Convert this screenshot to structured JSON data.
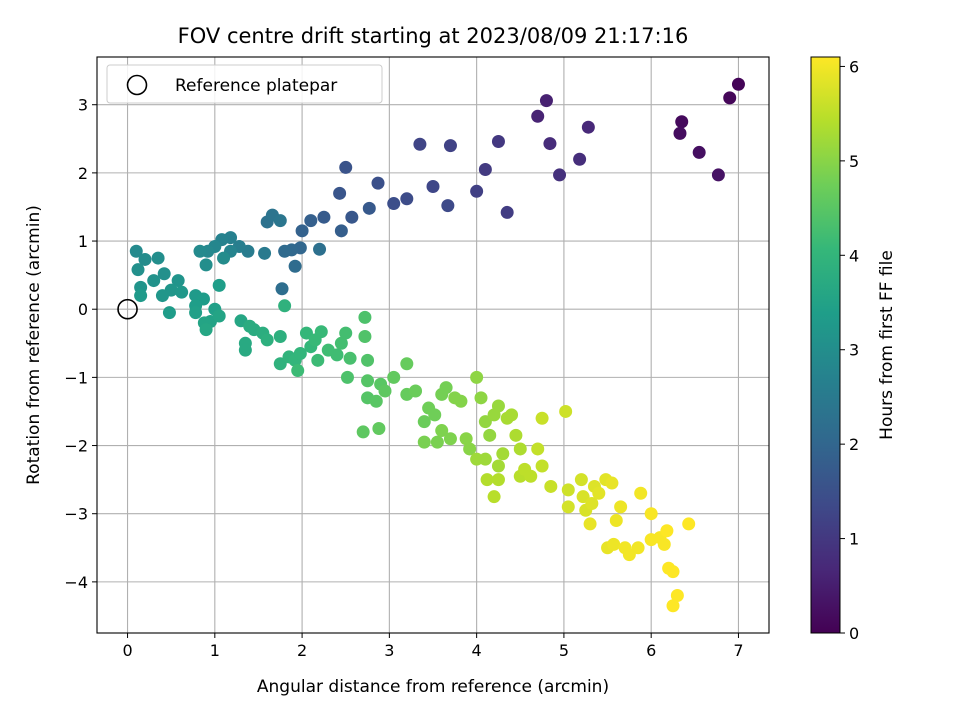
{
  "chart_data": {
    "type": "scatter",
    "title": "FOV centre drift starting at 2023/08/09 21:17:16",
    "xlabel": "Angular distance from reference (arcmin)",
    "ylabel": "Rotation from reference (arcmin)",
    "xlim": [
      -0.35,
      7.35
    ],
    "ylim": [
      -4.75,
      3.7
    ],
    "xticks": [
      0,
      1,
      2,
      3,
      4,
      5,
      6,
      7
    ],
    "yticks": [
      -4,
      -3,
      -2,
      -1,
      0,
      1,
      2,
      3
    ],
    "grid": true,
    "legend": {
      "placement": "top-left",
      "entries": [
        "Reference platepar"
      ]
    },
    "reference_point": {
      "x": 0,
      "y": 0
    },
    "colorbar": {
      "label": "Hours from first FF file",
      "range": [
        0,
        6.1
      ],
      "ticks": [
        0,
        1,
        2,
        3,
        4,
        5,
        6
      ],
      "colormap": "viridis",
      "stops": [
        "#440154",
        "#482878",
        "#3e4a89",
        "#31688e",
        "#26828e",
        "#1f9e89",
        "#35b779",
        "#6ece58",
        "#b5de2b",
        "#fde725"
      ]
    },
    "points": [
      {
        "x": 7.0,
        "y": 3.3,
        "h": 0.05
      },
      {
        "x": 6.9,
        "y": 3.1,
        "h": 0.1
      },
      {
        "x": 6.35,
        "y": 2.75,
        "h": 0.15
      },
      {
        "x": 6.33,
        "y": 2.58,
        "h": 0.2
      },
      {
        "x": 6.55,
        "y": 2.3,
        "h": 0.25
      },
      {
        "x": 6.77,
        "y": 1.97,
        "h": 0.3
      },
      {
        "x": 4.8,
        "y": 3.06,
        "h": 0.55
      },
      {
        "x": 4.7,
        "y": 2.83,
        "h": 0.6
      },
      {
        "x": 5.28,
        "y": 2.67,
        "h": 0.7
      },
      {
        "x": 4.84,
        "y": 2.43,
        "h": 0.75
      },
      {
        "x": 5.18,
        "y": 2.2,
        "h": 0.8
      },
      {
        "x": 4.95,
        "y": 1.97,
        "h": 0.85
      },
      {
        "x": 4.25,
        "y": 2.46,
        "h": 1.0
      },
      {
        "x": 4.1,
        "y": 2.05,
        "h": 1.05
      },
      {
        "x": 4.35,
        "y": 1.42,
        "h": 1.1
      },
      {
        "x": 4.0,
        "y": 1.73,
        "h": 1.15
      },
      {
        "x": 3.7,
        "y": 2.4,
        "h": 1.2
      },
      {
        "x": 3.35,
        "y": 2.42,
        "h": 1.25
      },
      {
        "x": 3.5,
        "y": 1.8,
        "h": 1.3
      },
      {
        "x": 3.67,
        "y": 1.52,
        "h": 1.35
      },
      {
        "x": 3.2,
        "y": 1.62,
        "h": 1.4
      },
      {
        "x": 3.05,
        "y": 1.55,
        "h": 1.45
      },
      {
        "x": 2.87,
        "y": 1.85,
        "h": 1.5
      },
      {
        "x": 2.5,
        "y": 2.08,
        "h": 1.55
      },
      {
        "x": 2.43,
        "y": 1.7,
        "h": 1.6
      },
      {
        "x": 2.57,
        "y": 1.35,
        "h": 1.65
      },
      {
        "x": 2.77,
        "y": 1.48,
        "h": 1.7
      },
      {
        "x": 2.25,
        "y": 1.35,
        "h": 1.75
      },
      {
        "x": 2.45,
        "y": 1.15,
        "h": 1.8
      },
      {
        "x": 2.1,
        "y": 1.3,
        "h": 1.85
      },
      {
        "x": 2.0,
        "y": 1.15,
        "h": 1.9
      },
      {
        "x": 1.98,
        "y": 0.9,
        "h": 2.0
      },
      {
        "x": 1.88,
        "y": 0.87,
        "h": 2.05
      },
      {
        "x": 1.8,
        "y": 0.85,
        "h": 2.1
      },
      {
        "x": 1.92,
        "y": 0.63,
        "h": 2.15
      },
      {
        "x": 1.77,
        "y": 0.3,
        "h": 2.2
      },
      {
        "x": 2.2,
        "y": 0.88,
        "h": 2.25
      },
      {
        "x": 1.6,
        "y": 1.28,
        "h": 2.3
      },
      {
        "x": 1.66,
        "y": 1.38,
        "h": 2.35
      },
      {
        "x": 1.75,
        "y": 1.3,
        "h": 2.4
      },
      {
        "x": 1.57,
        "y": 0.82,
        "h": 2.5
      },
      {
        "x": 1.38,
        "y": 0.85,
        "h": 2.55
      },
      {
        "x": 1.28,
        "y": 0.92,
        "h": 2.6
      },
      {
        "x": 1.18,
        "y": 1.05,
        "h": 2.65
      },
      {
        "x": 1.08,
        "y": 1.02,
        "h": 2.7
      },
      {
        "x": 1.18,
        "y": 0.85,
        "h": 2.75
      },
      {
        "x": 1.0,
        "y": 0.92,
        "h": 2.8
      },
      {
        "x": 0.92,
        "y": 0.85,
        "h": 2.85
      },
      {
        "x": 0.83,
        "y": 0.85,
        "h": 2.9
      },
      {
        "x": 1.1,
        "y": 0.75,
        "h": 2.95
      },
      {
        "x": 0.9,
        "y": 0.65,
        "h": 3.0
      },
      {
        "x": 0.1,
        "y": 0.85,
        "h": 2.9
      },
      {
        "x": 0.2,
        "y": 0.73,
        "h": 2.95
      },
      {
        "x": 0.35,
        "y": 0.75,
        "h": 3.0
      },
      {
        "x": 0.12,
        "y": 0.58,
        "h": 3.05
      },
      {
        "x": 0.42,
        "y": 0.52,
        "h": 3.05
      },
      {
        "x": 0.3,
        "y": 0.42,
        "h": 3.1
      },
      {
        "x": 0.58,
        "y": 0.42,
        "h": 3.15
      },
      {
        "x": 0.15,
        "y": 0.32,
        "h": 3.15
      },
      {
        "x": 0.5,
        "y": 0.28,
        "h": 3.2
      },
      {
        "x": 0.62,
        "y": 0.25,
        "h": 3.25
      },
      {
        "x": 0.4,
        "y": 0.2,
        "h": 3.2
      },
      {
        "x": 0.15,
        "y": 0.2,
        "h": 3.3
      },
      {
        "x": 0.78,
        "y": 0.2,
        "h": 3.3
      },
      {
        "x": 0.48,
        "y": -0.05,
        "h": 3.35
      },
      {
        "x": 0.87,
        "y": 0.15,
        "h": 3.35
      },
      {
        "x": 1.05,
        "y": 0.35,
        "h": 3.4
      },
      {
        "x": 0.78,
        "y": 0.05,
        "h": 3.4
      },
      {
        "x": 0.78,
        "y": -0.05,
        "h": 3.45
      },
      {
        "x": 1.0,
        "y": 0.0,
        "h": 3.45
      },
      {
        "x": 0.95,
        "y": -0.18,
        "h": 3.5
      },
      {
        "x": 0.88,
        "y": -0.2,
        "h": 3.55
      },
      {
        "x": 1.05,
        "y": -0.1,
        "h": 3.55
      },
      {
        "x": 0.9,
        "y": -0.3,
        "h": 3.6
      },
      {
        "x": 1.3,
        "y": -0.17,
        "h": 3.6
      },
      {
        "x": 1.35,
        "y": -0.5,
        "h": 3.7
      },
      {
        "x": 1.35,
        "y": -0.6,
        "h": 3.7
      },
      {
        "x": 1.45,
        "y": -0.3,
        "h": 3.75
      },
      {
        "x": 1.4,
        "y": -0.25,
        "h": 3.75
      },
      {
        "x": 1.55,
        "y": -0.35,
        "h": 3.8
      },
      {
        "x": 1.6,
        "y": -0.45,
        "h": 3.85
      },
      {
        "x": 1.75,
        "y": -0.4,
        "h": 3.85
      },
      {
        "x": 1.8,
        "y": 0.05,
        "h": 3.9
      },
      {
        "x": 1.75,
        "y": -0.8,
        "h": 3.9
      },
      {
        "x": 1.85,
        "y": -0.7,
        "h": 3.95
      },
      {
        "x": 1.92,
        "y": -0.75,
        "h": 4.0
      },
      {
        "x": 1.98,
        "y": -0.65,
        "h": 4.0
      },
      {
        "x": 2.05,
        "y": -0.35,
        "h": 4.05
      },
      {
        "x": 2.1,
        "y": -0.55,
        "h": 4.05
      },
      {
        "x": 2.15,
        "y": -0.45,
        "h": 4.1
      },
      {
        "x": 2.22,
        "y": -0.33,
        "h": 4.1
      },
      {
        "x": 1.95,
        "y": -0.9,
        "h": 4.15
      },
      {
        "x": 2.18,
        "y": -0.75,
        "h": 4.15
      },
      {
        "x": 2.3,
        "y": -0.6,
        "h": 4.2
      },
      {
        "x": 2.4,
        "y": -0.67,
        "h": 4.2
      },
      {
        "x": 2.45,
        "y": -0.5,
        "h": 4.25
      },
      {
        "x": 2.5,
        "y": -0.35,
        "h": 4.25
      },
      {
        "x": 2.55,
        "y": -0.72,
        "h": 4.3
      },
      {
        "x": 2.52,
        "y": -1.0,
        "h": 4.35
      },
      {
        "x": 2.72,
        "y": -0.12,
        "h": 4.35
      },
      {
        "x": 2.72,
        "y": -0.4,
        "h": 4.4
      },
      {
        "x": 2.75,
        "y": -0.75,
        "h": 4.4
      },
      {
        "x": 2.75,
        "y": -1.05,
        "h": 4.45
      },
      {
        "x": 2.75,
        "y": -1.3,
        "h": 4.45
      },
      {
        "x": 2.85,
        "y": -1.35,
        "h": 4.5
      },
      {
        "x": 2.9,
        "y": -1.1,
        "h": 4.5
      },
      {
        "x": 2.95,
        "y": -1.2,
        "h": 4.55
      },
      {
        "x": 2.7,
        "y": -1.8,
        "h": 4.55
      },
      {
        "x": 2.88,
        "y": -1.75,
        "h": 4.6
      },
      {
        "x": 3.05,
        "y": -1.0,
        "h": 4.6
      },
      {
        "x": 3.2,
        "y": -0.8,
        "h": 4.65
      },
      {
        "x": 3.2,
        "y": -1.25,
        "h": 4.65
      },
      {
        "x": 3.3,
        "y": -1.2,
        "h": 4.7
      },
      {
        "x": 3.4,
        "y": -1.65,
        "h": 4.7
      },
      {
        "x": 3.45,
        "y": -1.45,
        "h": 4.75
      },
      {
        "x": 3.52,
        "y": -1.55,
        "h": 4.75
      },
      {
        "x": 3.6,
        "y": -1.25,
        "h": 4.8
      },
      {
        "x": 3.65,
        "y": -1.15,
        "h": 4.8
      },
      {
        "x": 3.4,
        "y": -1.95,
        "h": 4.85
      },
      {
        "x": 3.55,
        "y": -1.95,
        "h": 4.85
      },
      {
        "x": 3.6,
        "y": -1.78,
        "h": 4.9
      },
      {
        "x": 3.7,
        "y": -1.9,
        "h": 4.9
      },
      {
        "x": 3.75,
        "y": -1.3,
        "h": 4.95
      },
      {
        "x": 3.82,
        "y": -1.35,
        "h": 4.95
      },
      {
        "x": 3.88,
        "y": -1.9,
        "h": 5.0
      },
      {
        "x": 3.92,
        "y": -2.05,
        "h": 5.0
      },
      {
        "x": 4.0,
        "y": -1.0,
        "h": 5.05
      },
      {
        "x": 4.05,
        "y": -1.3,
        "h": 5.05
      },
      {
        "x": 4.1,
        "y": -1.65,
        "h": 5.1
      },
      {
        "x": 4.15,
        "y": -1.85,
        "h": 5.1
      },
      {
        "x": 4.2,
        "y": -1.55,
        "h": 5.15
      },
      {
        "x": 4.25,
        "y": -1.42,
        "h": 5.15
      },
      {
        "x": 4.0,
        "y": -2.2,
        "h": 5.2
      },
      {
        "x": 4.1,
        "y": -2.2,
        "h": 5.2
      },
      {
        "x": 4.25,
        "y": -2.3,
        "h": 5.25
      },
      {
        "x": 4.3,
        "y": -2.12,
        "h": 5.25
      },
      {
        "x": 4.35,
        "y": -1.6,
        "h": 5.3
      },
      {
        "x": 4.4,
        "y": -1.55,
        "h": 5.3
      },
      {
        "x": 4.45,
        "y": -1.85,
        "h": 5.35
      },
      {
        "x": 4.5,
        "y": -2.05,
        "h": 5.35
      },
      {
        "x": 4.12,
        "y": -2.5,
        "h": 5.4
      },
      {
        "x": 4.25,
        "y": -2.5,
        "h": 5.4
      },
      {
        "x": 4.2,
        "y": -2.75,
        "h": 5.45
      },
      {
        "x": 4.5,
        "y": -2.45,
        "h": 5.45
      },
      {
        "x": 4.55,
        "y": -2.35,
        "h": 5.5
      },
      {
        "x": 4.62,
        "y": -2.45,
        "h": 5.5
      },
      {
        "x": 4.7,
        "y": -2.05,
        "h": 5.55
      },
      {
        "x": 4.75,
        "y": -2.3,
        "h": 5.55
      },
      {
        "x": 4.75,
        "y": -1.6,
        "h": 5.6
      },
      {
        "x": 4.85,
        "y": -2.6,
        "h": 5.6
      },
      {
        "x": 5.02,
        "y": -1.5,
        "h": 5.65
      },
      {
        "x": 5.05,
        "y": -2.65,
        "h": 5.65
      },
      {
        "x": 5.05,
        "y": -2.9,
        "h": 5.7
      },
      {
        "x": 5.2,
        "y": -2.5,
        "h": 5.7
      },
      {
        "x": 5.22,
        "y": -2.75,
        "h": 5.75
      },
      {
        "x": 5.25,
        "y": -2.95,
        "h": 5.75
      },
      {
        "x": 5.32,
        "y": -2.85,
        "h": 5.8
      },
      {
        "x": 5.35,
        "y": -2.6,
        "h": 5.8
      },
      {
        "x": 5.4,
        "y": -2.7,
        "h": 5.85
      },
      {
        "x": 5.48,
        "y": -2.5,
        "h": 5.85
      },
      {
        "x": 5.55,
        "y": -2.55,
        "h": 5.9
      },
      {
        "x": 5.3,
        "y": -3.15,
        "h": 5.9
      },
      {
        "x": 5.5,
        "y": -3.5,
        "h": 5.9
      },
      {
        "x": 5.57,
        "y": -3.45,
        "h": 5.95
      },
      {
        "x": 5.6,
        "y": -3.1,
        "h": 5.95
      },
      {
        "x": 5.65,
        "y": -2.9,
        "h": 5.95
      },
      {
        "x": 5.7,
        "y": -3.5,
        "h": 6.0
      },
      {
        "x": 5.75,
        "y": -3.6,
        "h": 6.0
      },
      {
        "x": 5.85,
        "y": -3.5,
        "h": 6.0
      },
      {
        "x": 5.88,
        "y": -2.7,
        "h": 6.0
      },
      {
        "x": 6.0,
        "y": -3.0,
        "h": 6.05
      },
      {
        "x": 6.0,
        "y": -3.38,
        "h": 6.05
      },
      {
        "x": 6.1,
        "y": -3.35,
        "h": 6.05
      },
      {
        "x": 6.15,
        "y": -3.45,
        "h": 6.05
      },
      {
        "x": 6.18,
        "y": -3.25,
        "h": 6.1
      },
      {
        "x": 6.2,
        "y": -3.8,
        "h": 6.1
      },
      {
        "x": 6.25,
        "y": -3.85,
        "h": 6.1
      },
      {
        "x": 6.3,
        "y": -4.2,
        "h": 6.1
      },
      {
        "x": 6.25,
        "y": -4.35,
        "h": 6.1
      },
      {
        "x": 6.43,
        "y": -3.15,
        "h": 6.1
      }
    ]
  }
}
